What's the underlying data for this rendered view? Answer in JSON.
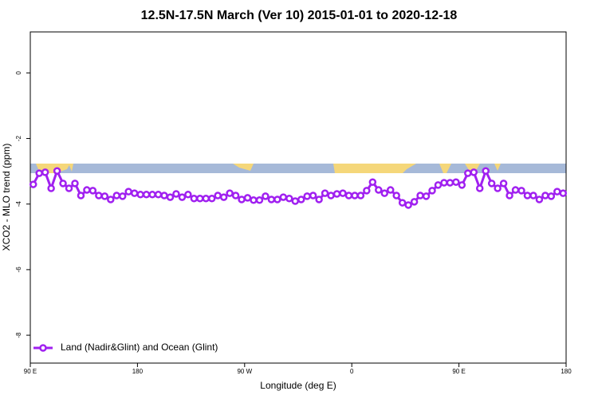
{
  "chart_data": {
    "type": "line",
    "title": "12.5N-17.5N March (Ver 10)   2015-01-01 to 2020-12-18",
    "x_label": "Longitude (deg E)",
    "y_label": "XCO2 - MLO trend (ppm)",
    "xlim": [
      90,
      540
    ],
    "ylim": [
      -8.85,
      1.25
    ],
    "xticks": [
      {
        "value": 90,
        "label": "90 E"
      },
      180,
      {
        "value": 270,
        "label": "90 W"
      },
      {
        "value": 360,
        "label": "0"
      },
      {
        "value": 450,
        "label": "90 E"
      },
      {
        "value": 540,
        "label": "180"
      }
    ],
    "yticks": [
      0,
      -2,
      -4,
      -6,
      -8
    ],
    "legend": "bottom-left",
    "x": [
      92.5,
      97.5,
      102.5,
      107.5,
      112.5,
      117.5,
      122.5,
      127.5,
      132.5,
      137.5,
      142.5,
      147.5,
      152.5,
      157.5,
      162.5,
      167.5,
      172.5,
      177.5,
      182.5,
      187.5,
      192.5,
      197.5,
      202.5,
      207.5,
      212.5,
      217.5,
      222.5,
      227.5,
      232.5,
      237.5,
      242.5,
      247.5,
      252.5,
      257.5,
      262.5,
      267.5,
      272.5,
      277.5,
      282.5,
      287.5,
      292.5,
      297.5,
      302.5,
      307.5,
      312.5,
      317.5,
      322.5,
      327.5,
      332.5,
      337.5,
      342.5,
      347.5,
      352.5,
      357.5,
      362.5,
      367.5,
      372.5,
      377.5,
      382.5,
      387.5,
      392.5,
      397.5,
      402.5,
      407.5,
      412.5,
      417.5,
      422.5,
      427.5,
      432.5,
      437.5,
      442.5,
      447.5,
      452.5,
      457.5,
      462.5,
      467.5,
      472.5,
      477.5,
      482.5,
      487.5,
      492.5,
      497.5,
      502.5,
      507.5,
      512.5,
      517.5,
      522.5,
      527.5,
      532.5,
      537.5
    ],
    "series": [
      {
        "name": "Land (Nadir&Glint) and Ocean (Glint)",
        "color": "#a020f0",
        "values": [
          -3.4,
          -3.06,
          -3.03,
          -3.52,
          -2.99,
          -3.37,
          -3.52,
          -3.37,
          -3.74,
          -3.57,
          -3.59,
          -3.74,
          -3.76,
          -3.86,
          -3.74,
          -3.76,
          -3.62,
          -3.67,
          -3.71,
          -3.71,
          -3.71,
          -3.71,
          -3.74,
          -3.79,
          -3.69,
          -3.79,
          -3.71,
          -3.83,
          -3.83,
          -3.83,
          -3.83,
          -3.74,
          -3.79,
          -3.67,
          -3.74,
          -3.86,
          -3.81,
          -3.88,
          -3.88,
          -3.76,
          -3.86,
          -3.86,
          -3.79,
          -3.83,
          -3.91,
          -3.86,
          -3.76,
          -3.74,
          -3.86,
          -3.67,
          -3.74,
          -3.69,
          -3.67,
          -3.74,
          -3.74,
          -3.74,
          -3.59,
          -3.33,
          -3.57,
          -3.67,
          -3.57,
          -3.74,
          -3.96,
          -4.03,
          -3.93,
          -3.74,
          -3.76,
          -3.59,
          -3.42,
          -3.35,
          -3.35,
          -3.33,
          -3.42,
          -3.06,
          -3.03,
          -3.52,
          -2.99,
          -3.37,
          -3.52,
          -3.37,
          -3.74,
          -3.57,
          -3.59,
          -3.74,
          -3.74,
          -3.86,
          -3.74,
          -3.76,
          -3.62,
          -3.67
        ]
      }
    ]
  }
}
